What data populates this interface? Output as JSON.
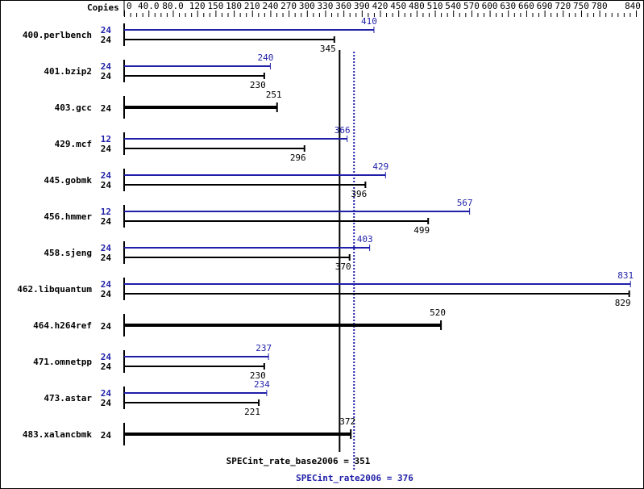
{
  "chart_data": {
    "type": "bar",
    "orientation": "horizontal",
    "axis_header": "Copies",
    "xlim": [
      0,
      840
    ],
    "tick_labels": [
      "0",
      "40.0",
      "80.0",
      "120",
      "150",
      "180",
      "210",
      "240",
      "270",
      "300",
      "330",
      "360",
      "390",
      "420",
      "450",
      "480",
      "510",
      "540",
      "570",
      "600",
      "630",
      "660",
      "690",
      "720",
      "750",
      "780",
      "840"
    ],
    "tick_values": [
      0,
      40,
      80,
      120,
      150,
      180,
      210,
      240,
      270,
      300,
      330,
      360,
      390,
      420,
      450,
      480,
      510,
      540,
      570,
      600,
      630,
      660,
      690,
      720,
      750,
      780,
      840
    ],
    "colors": {
      "base": "#000000",
      "peak": "#1f1fa8"
    },
    "benchmarks": [
      {
        "name": "400.perlbench",
        "peak_copies": "24",
        "peak": 410,
        "base_copies": "24",
        "base": 345
      },
      {
        "name": "401.bzip2",
        "peak_copies": "24",
        "peak": 240,
        "base_copies": "24",
        "base": 230
      },
      {
        "name": "403.gcc",
        "base_copies": "24",
        "base": 251
      },
      {
        "name": "429.mcf",
        "peak_copies": "12",
        "peak": 366,
        "base_copies": "24",
        "base": 296
      },
      {
        "name": "445.gobmk",
        "peak_copies": "24",
        "peak": 429,
        "base_copies": "24",
        "base": 396
      },
      {
        "name": "456.hmmer",
        "peak_copies": "12",
        "peak": 567,
        "base_copies": "24",
        "base": 499
      },
      {
        "name": "458.sjeng",
        "peak_copies": "24",
        "peak": 403,
        "base_copies": "24",
        "base": 370
      },
      {
        "name": "462.libquantum",
        "peak_copies": "24",
        "peak": 831,
        "base_copies": "24",
        "base": 829
      },
      {
        "name": "464.h264ref",
        "base_copies": "24",
        "base": 520
      },
      {
        "name": "471.omnetpp",
        "peak_copies": "24",
        "peak": 237,
        "base_copies": "24",
        "base": 230
      },
      {
        "name": "473.astar",
        "peak_copies": "24",
        "peak": 234,
        "base_copies": "24",
        "base": 221
      },
      {
        "name": "483.xalancbmk",
        "base_copies": "24",
        "base": 372
      }
    ],
    "base_summary": {
      "label": "SPECint_rate_base2006 = 351",
      "value": 351
    },
    "peak_summary": {
      "label": "SPECint_rate2006 = 376",
      "value": 376
    }
  }
}
